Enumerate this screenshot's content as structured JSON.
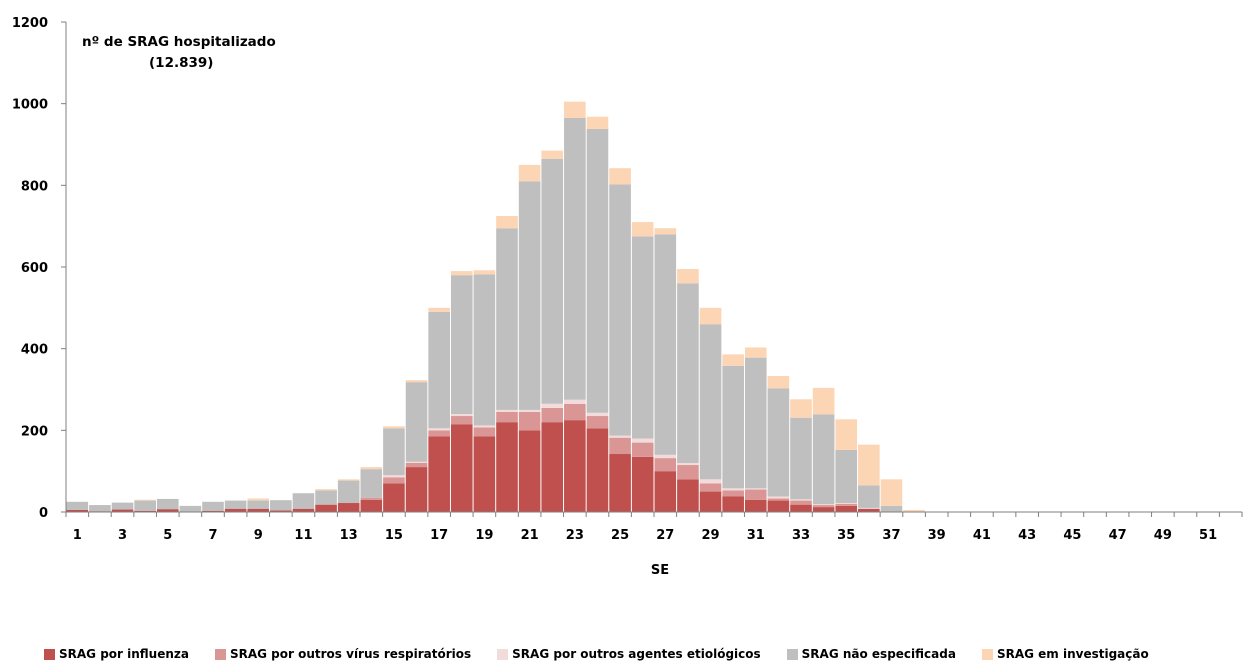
{
  "chart_data": {
    "type": "bar",
    "stacked": true,
    "annotation": {
      "line1": "nº de SRAG hospitalizado",
      "line2": "(12.839)"
    },
    "xlabel": "SE",
    "ylabel": "",
    "ylim": [
      0,
      1200
    ],
    "yticks": [
      0,
      200,
      400,
      600,
      800,
      1000,
      1200
    ],
    "x": [
      1,
      2,
      3,
      4,
      5,
      6,
      7,
      8,
      9,
      10,
      11,
      12,
      13,
      14,
      15,
      16,
      17,
      18,
      19,
      20,
      21,
      22,
      23,
      24,
      25,
      26,
      27,
      28,
      29,
      30,
      31,
      32,
      33,
      34,
      35,
      36,
      37,
      38,
      39,
      40,
      41,
      42,
      43,
      44,
      45,
      46,
      47,
      48,
      49,
      50,
      51,
      52
    ],
    "xtick_labels": [
      "1",
      "3",
      "5",
      "7",
      "9",
      "11",
      "13",
      "15",
      "17",
      "19",
      "21",
      "23",
      "25",
      "27",
      "29",
      "31",
      "33",
      "35",
      "37",
      "39",
      "41",
      "43",
      "45",
      "47",
      "49",
      "51"
    ],
    "grid": false,
    "legend_position": "bottom",
    "colors": {
      "influenza": "#c0504d",
      "outros_virus": "#d99694",
      "outros_agentes": "#f2dcdb",
      "nao_especificada": "#bfbfbf",
      "investigacao": "#fcd5b5"
    },
    "series": [
      {
        "name": "SRAG por influenza",
        "key": "influenza",
        "values": [
          5,
          2,
          6,
          3,
          7,
          0,
          3,
          8,
          8,
          4,
          8,
          18,
          22,
          30,
          70,
          110,
          185,
          215,
          185,
          220,
          200,
          220,
          225,
          205,
          142,
          135,
          100,
          80,
          50,
          38,
          30,
          28,
          18,
          12,
          15,
          8,
          0,
          0,
          0,
          0,
          0,
          0,
          0,
          0,
          0,
          0,
          0,
          0,
          0,
          0,
          0,
          0
        ]
      },
      {
        "name": "SRAG por outros vírus respiratórios",
        "key": "outros_virus",
        "values": [
          0,
          0,
          0,
          0,
          0,
          0,
          0,
          0,
          0,
          0,
          0,
          0,
          0,
          5,
          15,
          10,
          15,
          20,
          22,
          25,
          45,
          35,
          40,
          30,
          40,
          35,
          32,
          35,
          20,
          15,
          25,
          5,
          10,
          5,
          5,
          0,
          0,
          0,
          0,
          0,
          0,
          0,
          0,
          0,
          0,
          0,
          0,
          0,
          0,
          0,
          0,
          0
        ]
      },
      {
        "name": "SRAG por outros agentes etiológicos",
        "key": "outros_agentes",
        "values": [
          0,
          0,
          0,
          0,
          0,
          0,
          0,
          0,
          0,
          0,
          0,
          0,
          0,
          0,
          5,
          3,
          5,
          5,
          5,
          5,
          5,
          10,
          10,
          8,
          5,
          10,
          8,
          5,
          10,
          5,
          3,
          5,
          3,
          2,
          2,
          2,
          0,
          0,
          0,
          0,
          0,
          0,
          0,
          0,
          0,
          0,
          0,
          0,
          0,
          0,
          0,
          0
        ]
      },
      {
        "name": "SRAG não especificada",
        "key": "nao_especificada",
        "values": [
          20,
          15,
          17,
          25,
          25,
          15,
          22,
          20,
          20,
          25,
          38,
          35,
          55,
          70,
          115,
          195,
          285,
          340,
          370,
          445,
          560,
          600,
          690,
          695,
          615,
          495,
          540,
          440,
          380,
          300,
          320,
          265,
          200,
          220,
          130,
          55,
          15,
          0,
          0,
          0,
          0,
          0,
          0,
          0,
          0,
          0,
          0,
          0,
          0,
          0,
          0,
          0
        ]
      },
      {
        "name": "SRAG em investigação",
        "key": "investigacao",
        "values": [
          0,
          0,
          0,
          2,
          0,
          0,
          0,
          0,
          5,
          0,
          0,
          3,
          3,
          5,
          5,
          5,
          10,
          10,
          10,
          30,
          40,
          20,
          40,
          30,
          40,
          35,
          15,
          35,
          40,
          28,
          25,
          30,
          45,
          65,
          75,
          100,
          65,
          5,
          0,
          0,
          0,
          0,
          0,
          0,
          0,
          0,
          0,
          0,
          0,
          0,
          0,
          0
        ]
      }
    ]
  }
}
